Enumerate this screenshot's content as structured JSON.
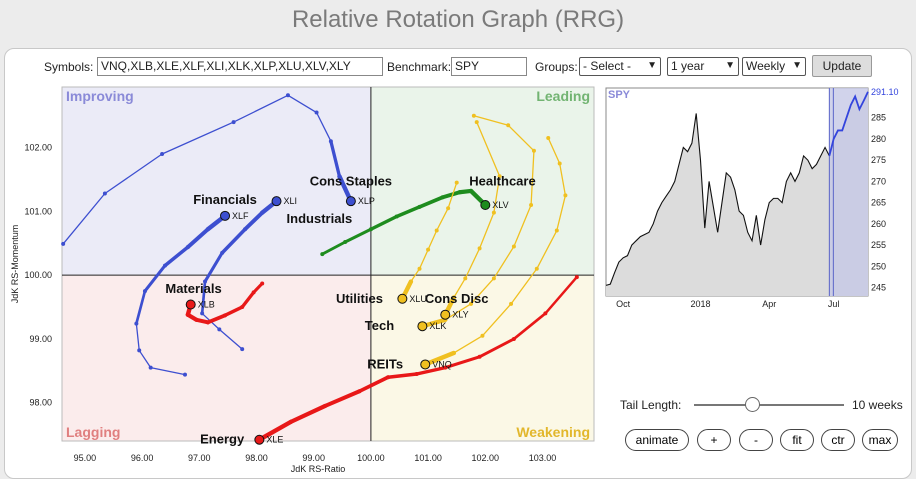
{
  "page": {
    "title": "Relative Rotation Graph (RRG)"
  },
  "toolbar": {
    "symbols_label": "Symbols:",
    "symbols_value": "VNQ,XLB,XLE,XLF,XLI,XLK,XLP,XLU,XLV,XLY",
    "benchmark_label": "Benchmark:",
    "benchmark_value": "SPY",
    "groups_label": "Groups:",
    "groups_value": "- Select -",
    "period_value": "1 year",
    "frequency_value": "Weekly",
    "update_label": "Update"
  },
  "controls": {
    "tail_length_label": "Tail Length:",
    "tail_length_value": "10 weeks",
    "tail_length_weeks": 10,
    "tail_length_max_weeks": 26,
    "buttons": [
      "animate",
      "+",
      "-",
      "fit",
      "ctr",
      "max"
    ]
  },
  "colors": {
    "improving": "#ebebf7",
    "leading": "#eaf4ea",
    "lagging": "#fbecec",
    "weakening": "#fbf8e6",
    "improving_text": "#8a8ad8",
    "leading_text": "#72b472",
    "lagging_text": "#e07f7f",
    "weakening_text": "#e2b72c",
    "blue": "#3d4fd0",
    "green": "#1e8c1e",
    "red": "#e81818",
    "gold": "#f0c020",
    "axis_line": "#222222"
  },
  "chart_data": [
    {
      "type": "scatter",
      "subtype": "relative-rotation-graph",
      "xlabel": "JdK RS-Ratio",
      "ylabel": "JdK RS-Momentum",
      "xlim": [
        94.6,
        103.9
      ],
      "ylim": [
        97.4,
        102.95
      ],
      "xticks": [
        "95.00",
        "96.00",
        "97.00",
        "98.00",
        "99.00",
        "100.00",
        "101.00",
        "102.00",
        "103.00"
      ],
      "yticks": [
        "98.00",
        "99.00",
        "100.00",
        "101.00",
        "102.00"
      ],
      "center": [
        100,
        100
      ],
      "quadrants": {
        "top_left": "Improving",
        "top_right": "Leading",
        "bottom_left": "Lagging",
        "bottom_right": "Weakening"
      },
      "series": [
        {
          "symbol": "XLF",
          "name": "Financials",
          "color": "blue",
          "head": [
            97.45,
            100.93
          ],
          "label_anchor": [
            97.45,
            101.18
          ],
          "heavy": 5,
          "tail": [
            [
              96.75,
              98.44
            ],
            [
              96.15,
              98.55
            ],
            [
              95.95,
              98.82
            ],
            [
              95.9,
              99.24
            ],
            [
              96.05,
              99.75
            ],
            [
              96.4,
              100.15
            ],
            [
              96.8,
              100.44
            ],
            [
              97.15,
              100.72
            ],
            [
              97.45,
              100.93
            ]
          ]
        },
        {
          "symbol": "XLI",
          "name": "Industrials",
          "color": "blue",
          "head": [
            98.35,
            101.16
          ],
          "label_anchor": [
            99.1,
            100.88
          ],
          "heavy": 5,
          "tail": [
            [
              97.75,
              98.84
            ],
            [
              97.35,
              99.15
            ],
            [
              97.05,
              99.4
            ],
            [
              97.1,
              99.9
            ],
            [
              97.4,
              100.35
            ],
            [
              97.8,
              100.72
            ],
            [
              98.1,
              100.98
            ],
            [
              98.35,
              101.16
            ]
          ]
        },
        {
          "symbol": "XLP",
          "name": "Cons Staples",
          "color": "blue",
          "head": [
            99.65,
            101.16
          ],
          "label_anchor": [
            99.65,
            101.47
          ],
          "heavy": 2,
          "tail": [
            [
              94.62,
              100.49
            ],
            [
              95.35,
              101.28
            ],
            [
              96.35,
              101.9
            ],
            [
              97.6,
              102.4
            ],
            [
              98.55,
              102.82
            ],
            [
              99.05,
              102.55
            ],
            [
              99.3,
              102.1
            ],
            [
              99.45,
              101.55
            ],
            [
              99.65,
              101.16
            ]
          ]
        },
        {
          "symbol": "XLV",
          "name": "Healthcare",
          "color": "green",
          "head": [
            102.0,
            101.1
          ],
          "label_anchor": [
            102.3,
            101.47
          ],
          "heavy": 10,
          "tail": [
            [
              99.15,
              100.33
            ],
            [
              99.55,
              100.52
            ],
            [
              100.0,
              100.72
            ],
            [
              100.45,
              100.92
            ],
            [
              100.85,
              101.07
            ],
            [
              101.25,
              101.22
            ],
            [
              101.55,
              101.3
            ],
            [
              101.75,
              101.32
            ],
            [
              102.0,
              101.1
            ]
          ]
        },
        {
          "symbol": "XLU",
          "name": "Utilities",
          "color": "gold",
          "head": [
            100.55,
            99.63
          ],
          "label_anchor": [
            99.8,
            99.63
          ],
          "heavy": 1,
          "tail": [
            [
              101.5,
              101.45
            ],
            [
              101.35,
              101.05
            ],
            [
              101.15,
              100.7
            ],
            [
              101.0,
              100.4
            ],
            [
              100.85,
              100.1
            ],
            [
              100.7,
              99.9
            ],
            [
              100.55,
              99.63
            ]
          ]
        },
        {
          "symbol": "XLY",
          "name": "Cons Disc",
          "color": "gold",
          "head": [
            101.3,
            99.38
          ],
          "label_anchor": [
            101.5,
            99.63
          ],
          "heavy": 1,
          "tail": [
            [
              101.85,
              102.4
            ],
            [
              102.25,
              101.55
            ],
            [
              102.15,
              100.98
            ],
            [
              101.9,
              100.42
            ],
            [
              101.65,
              99.95
            ],
            [
              101.45,
              99.65
            ],
            [
              101.3,
              99.38
            ]
          ]
        },
        {
          "symbol": "XLK",
          "name": "Tech",
          "color": "gold",
          "head": [
            100.9,
            99.2
          ],
          "label_anchor": [
            100.15,
            99.2
          ],
          "heavy": 1,
          "tail": [
            [
              101.8,
              102.5
            ],
            [
              102.4,
              102.35
            ],
            [
              102.85,
              101.95
            ],
            [
              102.8,
              101.1
            ],
            [
              102.5,
              100.45
            ],
            [
              102.15,
              99.95
            ],
            [
              101.75,
              99.55
            ],
            [
              101.3,
              99.3
            ],
            [
              100.9,
              99.2
            ]
          ]
        },
        {
          "symbol": "VNQ",
          "name": "REITs",
          "color": "gold",
          "head": [
            100.95,
            98.6
          ],
          "label_anchor": [
            100.25,
            98.6
          ],
          "heavy": 1,
          "tail": [
            [
              103.1,
              102.15
            ],
            [
              103.3,
              101.75
            ],
            [
              103.4,
              101.25
            ],
            [
              103.25,
              100.7
            ],
            [
              102.9,
              100.1
            ],
            [
              102.45,
              99.55
            ],
            [
              101.95,
              99.05
            ],
            [
              101.45,
              98.78
            ],
            [
              100.95,
              98.6
            ]
          ]
        },
        {
          "symbol": "XLB",
          "name": "Materials",
          "color": "red",
          "head": [
            96.85,
            99.54
          ],
          "label_anchor": [
            96.9,
            99.78
          ],
          "heavy": 10,
          "tail": [
            [
              98.1,
              99.87
            ],
            [
              97.95,
              99.73
            ],
            [
              97.75,
              99.5
            ],
            [
              97.45,
              99.37
            ],
            [
              97.15,
              99.26
            ],
            [
              96.95,
              99.3
            ],
            [
              96.8,
              99.38
            ],
            [
              96.85,
              99.54
            ]
          ]
        },
        {
          "symbol": "XLE",
          "name": "Energy",
          "color": "red",
          "head": [
            98.05,
            97.42
          ],
          "label_anchor": [
            97.4,
            97.42
          ],
          "heavy": 10,
          "tail": [
            [
              103.6,
              99.97
            ],
            [
              103.05,
              99.4
            ],
            [
              102.5,
              99.0
            ],
            [
              101.9,
              98.72
            ],
            [
              101.3,
              98.55
            ],
            [
              100.8,
              98.45
            ],
            [
              100.3,
              98.4
            ],
            [
              99.8,
              98.18
            ],
            [
              99.2,
              97.95
            ],
            [
              98.6,
              97.7
            ],
            [
              98.05,
              97.42
            ]
          ]
        }
      ]
    },
    {
      "type": "area",
      "title": "SPY",
      "last_value_label": "291.10",
      "xticks": [
        "Oct",
        "2018",
        "Apr",
        "Jul"
      ],
      "xtick_index": [
        4,
        22,
        38,
        53
      ],
      "yticks": [
        "245",
        "250",
        "255",
        "260",
        "265",
        "270",
        "275",
        "280",
        "285"
      ],
      "ylim": [
        243,
        292
      ],
      "highlight_from_index": 52,
      "values": [
        245.5,
        245.8,
        248.5,
        251.0,
        252.0,
        252.5,
        255.0,
        256.0,
        257.0,
        257.5,
        258.0,
        260.0,
        263.0,
        265.0,
        266.5,
        268.0,
        270.0,
        274.0,
        278.0,
        277.0,
        279.0,
        286.0,
        275.0,
        259.0,
        270.0,
        264.0,
        258.0,
        265.0,
        272.0,
        271.0,
        268.0,
        263.0,
        262.0,
        258.0,
        256.0,
        262.0,
        255.0,
        261.0,
        265.0,
        266.0,
        266.0,
        265.0,
        270.0,
        272.0,
        270.0,
        272.0,
        276.0,
        275.0,
        273.0,
        274.0,
        276.0,
        278.0,
        276.0,
        280.0,
        282.0,
        282.0,
        285.0,
        288.0,
        290.0,
        287.0,
        289.0,
        291.1
      ]
    }
  ]
}
